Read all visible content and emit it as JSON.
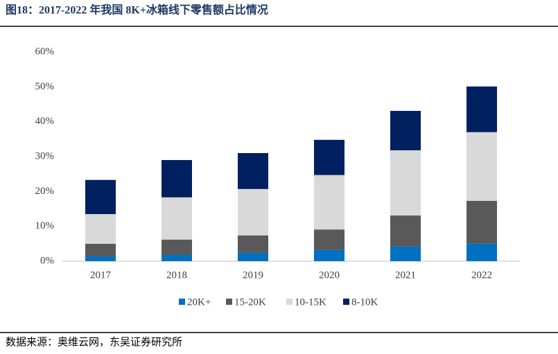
{
  "chart_data": {
    "type": "stacked-bar",
    "title": "图18：2017-2022 年我国 8K+冰箱线下零售额占比情况",
    "source": "数据来源：奥维云网，东吴证券研究所",
    "categories": [
      "2017",
      "2018",
      "2019",
      "2020",
      "2021",
      "2022"
    ],
    "series": [
      {
        "name": "20K+",
        "color": "#0070c0",
        "values": [
          1.4,
          1.8,
          2.4,
          3.2,
          4.2,
          5.0
        ]
      },
      {
        "name": "15-20K",
        "color": "#595959",
        "values": [
          3.6,
          4.4,
          5.0,
          5.9,
          8.9,
          12.3
        ]
      },
      {
        "name": "10-15K",
        "color": "#d9d9d9",
        "values": [
          8.5,
          12.1,
          13.3,
          15.6,
          18.7,
          19.7
        ]
      },
      {
        "name": "8-10K",
        "color": "#002060",
        "values": [
          9.8,
          10.7,
          10.3,
          10.1,
          11.3,
          13.1
        ]
      }
    ],
    "ylim": [
      0,
      60
    ],
    "yticks": [
      {
        "value": 0,
        "label": "0%"
      },
      {
        "value": 10,
        "label": "10%"
      },
      {
        "value": 20,
        "label": "20%"
      },
      {
        "value": 30,
        "label": "30%"
      },
      {
        "value": 40,
        "label": "40%"
      },
      {
        "value": 50,
        "label": "50%"
      },
      {
        "value": 60,
        "label": "60%"
      }
    ],
    "grid": false
  }
}
